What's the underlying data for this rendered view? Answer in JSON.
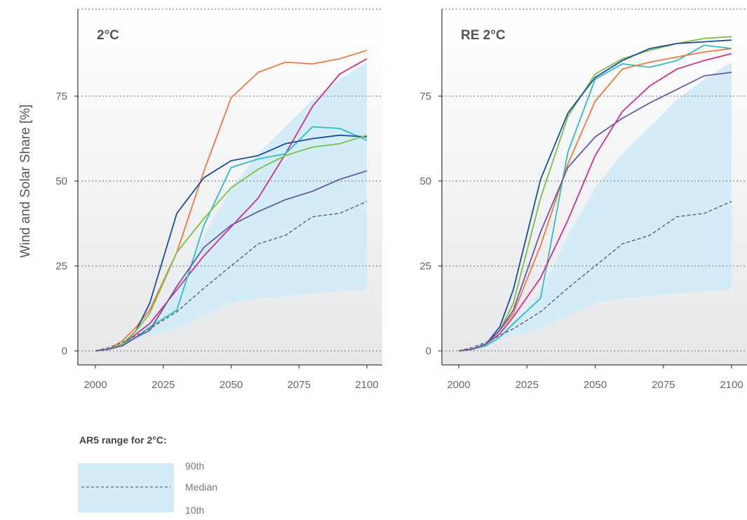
{
  "figure": {
    "ylabel": "Wind and Solar Share [%]"
  },
  "chart_data": [
    {
      "type": "line",
      "title": "2°C",
      "xlabel": "",
      "ylabel": "Wind and Solar Share [%]",
      "xlim": [
        1995,
        2105
      ],
      "ylim": [
        -4,
        101
      ],
      "x_ticks": [
        "2000",
        "2025",
        "2050",
        "2075",
        "2100"
      ],
      "y_ticks": [
        "0",
        "25",
        "50",
        "75"
      ],
      "grid": "dotted horizontal",
      "range_band": {
        "x": [
          2000,
          2005,
          2010,
          2020,
          2030,
          2040,
          2050,
          2060,
          2070,
          2080,
          2090,
          2100
        ],
        "lower": [
          0,
          0.5,
          1.5,
          4.5,
          6.5,
          10.5,
          14,
          15.5,
          16,
          17,
          17.5,
          18
        ],
        "upper": [
          0,
          1,
          3,
          8.5,
          17,
          34,
          48,
          58,
          66,
          74,
          80,
          85
        ]
      },
      "median": {
        "x": [
          2000,
          2005,
          2010,
          2020,
          2030,
          2040,
          2050,
          2060,
          2070,
          2080,
          2090,
          2100
        ],
        "values": [
          0,
          1,
          2.5,
          6.5,
          11.5,
          18.5,
          25,
          31.5,
          34,
          39.5,
          40.5,
          44
        ]
      },
      "series": [
        {
          "color": "#f07840",
          "x": [
            2000,
            2005,
            2010,
            2015,
            2020,
            2030,
            2040,
            2050,
            2060,
            2070,
            2080,
            2090,
            2100
          ],
          "values": [
            0,
            0.5,
            3,
            7,
            12,
            29,
            53,
            74.5,
            82,
            85,
            84.5,
            86,
            88.5
          ]
        },
        {
          "color": "#d02d8c",
          "x": [
            2000,
            2005,
            2010,
            2015,
            2020,
            2030,
            2040,
            2050,
            2060,
            2070,
            2080,
            2090,
            2100
          ],
          "values": [
            0,
            0.5,
            2,
            5,
            8,
            18,
            28,
            36.5,
            45,
            58,
            72,
            81.5,
            86
          ]
        },
        {
          "color": "#2cbfc2",
          "x": [
            2000,
            2005,
            2010,
            2015,
            2020,
            2030,
            2040,
            2050,
            2060,
            2070,
            2080,
            2090,
            2100
          ],
          "values": [
            0,
            0.5,
            2,
            4,
            7,
            12,
            37,
            54,
            56.5,
            58,
            66,
            65.5,
            62
          ]
        },
        {
          "color": "#1c4e96",
          "x": [
            2000,
            2005,
            2010,
            2015,
            2020,
            2030,
            2040,
            2050,
            2060,
            2070,
            2080,
            2090,
            2100
          ],
          "values": [
            0,
            0.5,
            2,
            6,
            14,
            40.5,
            51,
            56,
            57.5,
            61,
            62.5,
            63.5,
            63
          ]
        },
        {
          "color": "#7bc046",
          "x": [
            2000,
            2005,
            2010,
            2015,
            2020,
            2030,
            2040,
            2050,
            2060,
            2070,
            2080,
            2090,
            2100
          ],
          "values": [
            0,
            0.5,
            2,
            6,
            11,
            29,
            39,
            48,
            53.5,
            57.5,
            60,
            61,
            63.5
          ]
        },
        {
          "color": "#6b5aa3",
          "x": [
            2000,
            2005,
            2010,
            2015,
            2020,
            2030,
            2040,
            2050,
            2060,
            2070,
            2080,
            2090,
            2100
          ],
          "values": [
            0,
            0.5,
            1.5,
            4,
            6,
            19,
            30.5,
            37,
            41,
            44.5,
            47,
            50.5,
            53
          ]
        }
      ]
    },
    {
      "type": "line",
      "title": "RE 2°C",
      "xlabel": "",
      "ylabel": "",
      "xlim": [
        1995,
        2105
      ],
      "ylim": [
        -4,
        101
      ],
      "x_ticks": [
        "2000",
        "2025",
        "2050",
        "2075",
        "2100"
      ],
      "y_ticks": [
        "0",
        "25",
        "50",
        "75"
      ],
      "grid": "dotted horizontal",
      "range_band": {
        "x": [
          2000,
          2005,
          2010,
          2020,
          2030,
          2040,
          2050,
          2060,
          2070,
          2080,
          2090,
          2100
        ],
        "lower": [
          0,
          0.5,
          1.5,
          4.5,
          6.5,
          10.5,
          14,
          15.5,
          16,
          17,
          17.5,
          18
        ],
        "upper": [
          0,
          1,
          3,
          8.5,
          17,
          34,
          48,
          58,
          66,
          74,
          80,
          85
        ]
      },
      "median": {
        "x": [
          2000,
          2005,
          2010,
          2020,
          2030,
          2040,
          2050,
          2060,
          2070,
          2080,
          2090,
          2100
        ],
        "values": [
          0,
          1,
          2.5,
          6.5,
          11.5,
          18.5,
          25,
          31.5,
          34,
          39.5,
          40.5,
          44
        ]
      },
      "series": [
        {
          "color": "#7bc046",
          "x": [
            2000,
            2005,
            2010,
            2015,
            2020,
            2030,
            2040,
            2050,
            2060,
            2070,
            2080,
            2090,
            2100
          ],
          "values": [
            0,
            0.5,
            2,
            6,
            14,
            45,
            69,
            81.5,
            86,
            88.5,
            90.5,
            92,
            92.5
          ]
        },
        {
          "color": "#1c4e96",
          "x": [
            2000,
            2005,
            2010,
            2015,
            2020,
            2030,
            2040,
            2050,
            2060,
            2070,
            2080,
            2090,
            2100
          ],
          "values": [
            0,
            0.5,
            2,
            7,
            18,
            50.5,
            70,
            80.5,
            85.5,
            89,
            90.5,
            91,
            91.5
          ]
        },
        {
          "color": "#2cbfc2",
          "x": [
            2000,
            2005,
            2010,
            2015,
            2020,
            2030,
            2040,
            2050,
            2060,
            2070,
            2080,
            2090,
            2100
          ],
          "values": [
            0,
            0.5,
            1.5,
            4,
            8,
            15.5,
            58.5,
            80,
            84.5,
            83.5,
            85.5,
            90,
            89
          ]
        },
        {
          "color": "#f07840",
          "x": [
            2000,
            2005,
            2010,
            2015,
            2020,
            2030,
            2040,
            2050,
            2060,
            2070,
            2080,
            2090,
            2100
          ],
          "values": [
            0,
            0.5,
            2,
            6,
            11,
            31,
            55,
            73.5,
            83,
            85,
            86.5,
            88,
            89
          ]
        },
        {
          "color": "#d02d8c",
          "x": [
            2000,
            2005,
            2010,
            2015,
            2020,
            2030,
            2040,
            2050,
            2060,
            2070,
            2080,
            2090,
            2100
          ],
          "values": [
            0,
            0.5,
            2,
            5,
            10,
            21.5,
            38.5,
            57.5,
            70.5,
            78,
            83,
            85.5,
            87.5
          ]
        },
        {
          "color": "#6b5aa3",
          "x": [
            2000,
            2005,
            2010,
            2015,
            2020,
            2030,
            2040,
            2050,
            2060,
            2070,
            2080,
            2090,
            2100
          ],
          "values": [
            0,
            0.5,
            2,
            6,
            12,
            35,
            54,
            63,
            68.5,
            73,
            77,
            81,
            82
          ]
        }
      ]
    }
  ],
  "legend": {
    "title": "AR5 range for 2°C:",
    "upper_label": "90th",
    "median_label": "Median",
    "lower_label": "10th",
    "band_color": "#d4ebf8",
    "median_color": "#666666"
  },
  "colors": {
    "band": "#d4ebf8",
    "median": "#666666",
    "axis": "#444444",
    "grid": "#888888",
    "panel_bg_top": "#ffffff",
    "panel_bg_bottom": "#e6e7e9"
  }
}
